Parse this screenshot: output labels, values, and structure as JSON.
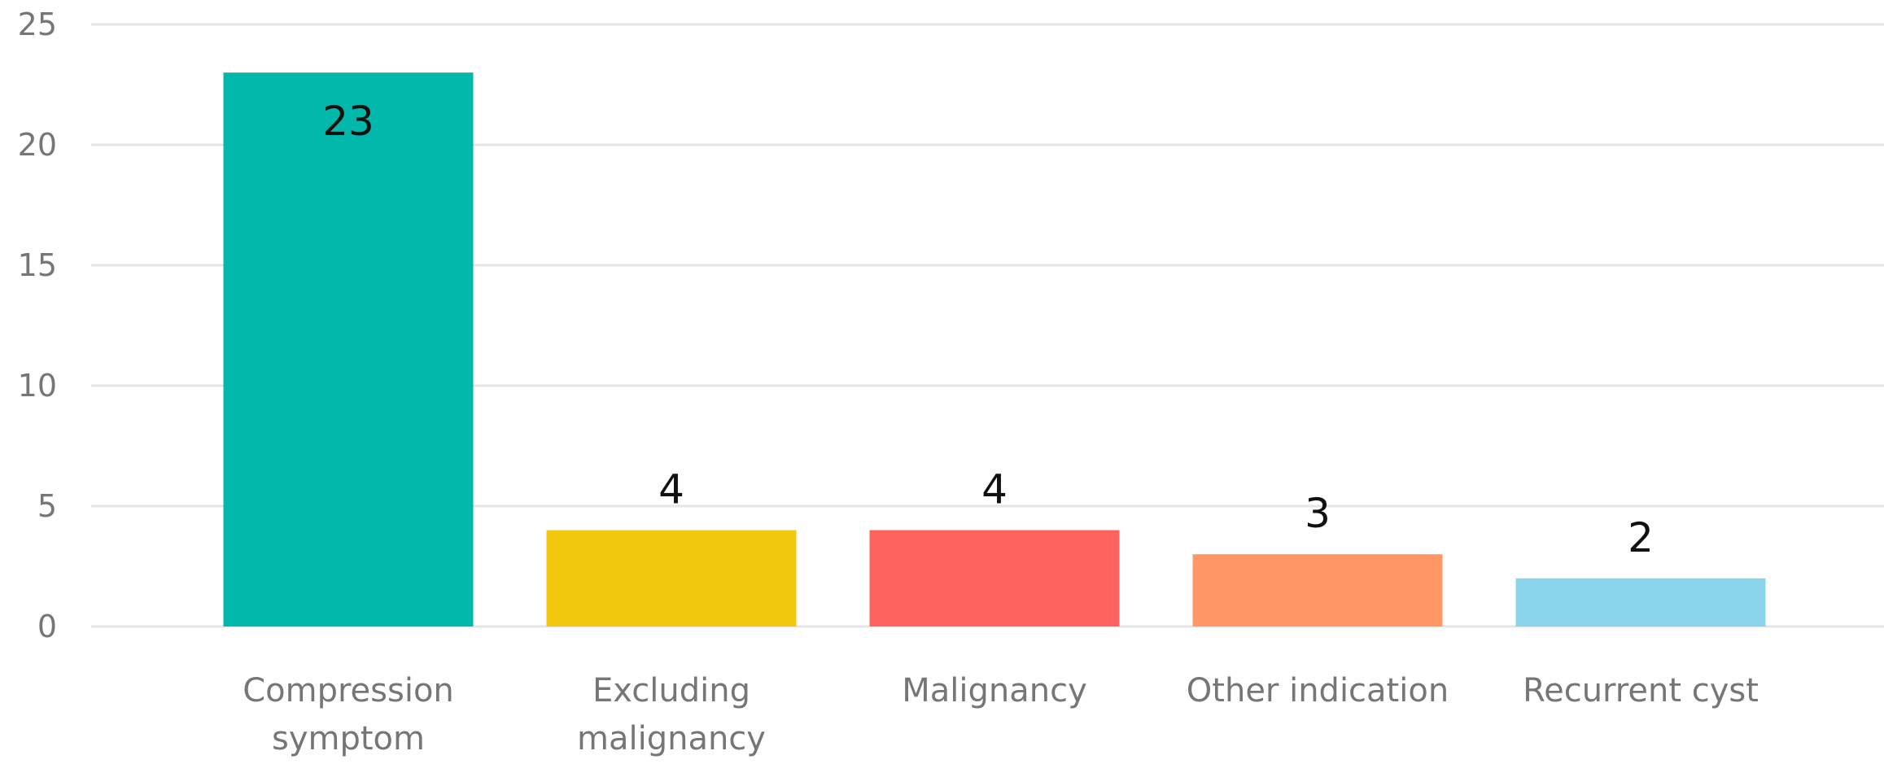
{
  "chart_data": {
    "type": "bar",
    "categories": [
      [
        "Compression",
        "symptom"
      ],
      [
        "Excluding",
        "malignancy"
      ],
      [
        "Malignancy"
      ],
      [
        "Other indication"
      ],
      [
        "Recurrent cyst"
      ]
    ],
    "values": [
      23,
      4,
      4,
      3,
      2
    ],
    "colors": [
      "#01B8AA",
      "#F2C80F",
      "#FD625E",
      "#FE9666",
      "#8AD4EB"
    ],
    "ylim": [
      0,
      25
    ],
    "yticks": [
      0,
      5,
      10,
      15,
      20,
      25
    ],
    "grid": true,
    "title": "",
    "xlabel": "",
    "ylabel": ""
  }
}
